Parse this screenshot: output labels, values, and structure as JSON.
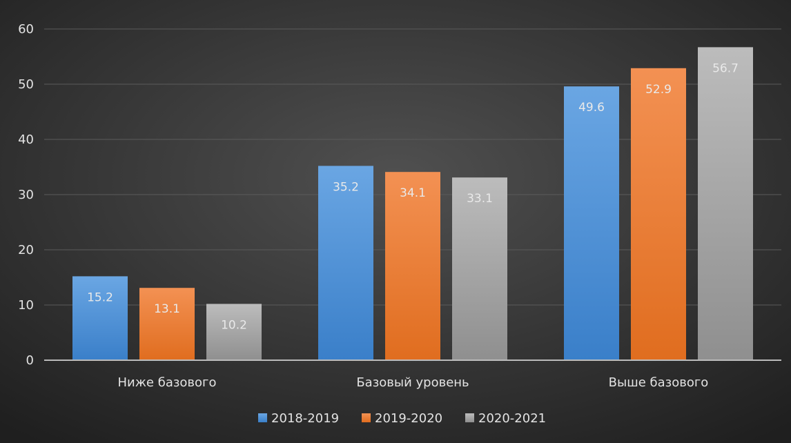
{
  "chart_data": {
    "type": "bar",
    "categories": [
      "Ниже базового",
      "Базовый уровень",
      "Выше базового"
    ],
    "series": [
      {
        "name": "2018-2019",
        "values": [
          15.2,
          35.2,
          49.6
        ],
        "color": "#4b8fd6",
        "labels": [
          "15.2",
          "35.2",
          "49.6"
        ]
      },
      {
        "name": "2019-2020",
        "values": [
          13.1,
          34.1,
          52.9
        ],
        "color": "#ee7a30",
        "labels": [
          "13.1",
          "34.1",
          "52.9"
        ]
      },
      {
        "name": "2020-2021",
        "values": [
          10.2,
          33.1,
          56.7
        ],
        "color": "#a5a5a5",
        "labels": [
          "10.2",
          "33.1",
          "56.7"
        ]
      }
    ],
    "y_ticks": [
      "0",
      "10",
      "20",
      "30",
      "40",
      "50",
      "60"
    ],
    "ylim": [
      0,
      60
    ],
    "grid": true,
    "legend": "bottom",
    "background": "#3a3a3a"
  }
}
